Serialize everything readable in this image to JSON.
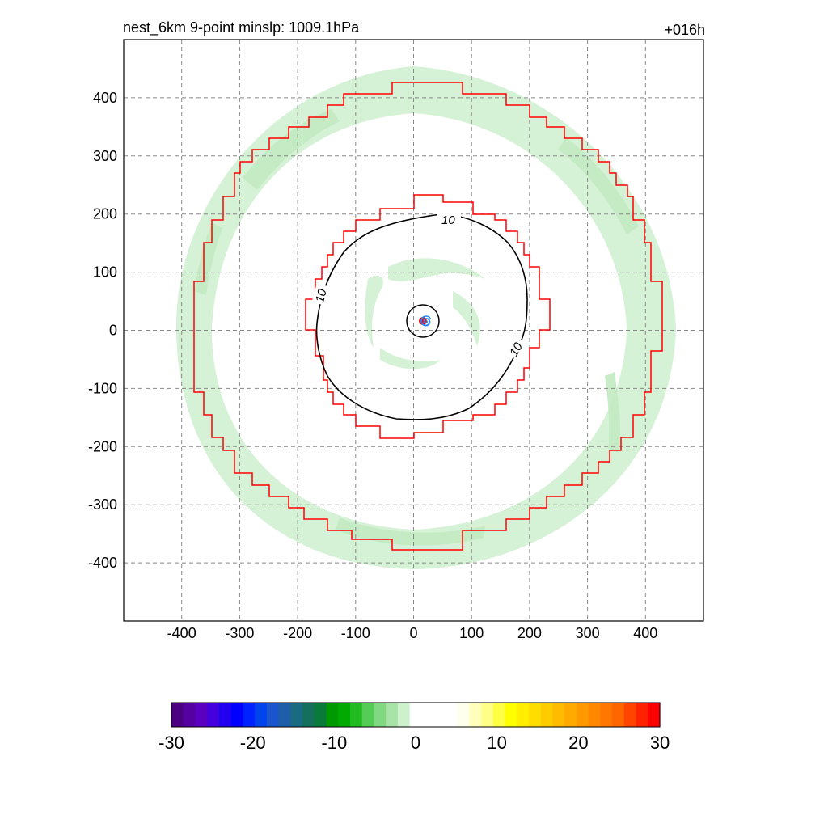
{
  "title_left": "nest_6km  9-point minslp: 1009.1hPa",
  "title_right": "+016h",
  "chart_data": {
    "type": "contour",
    "x_ticks": [
      -400,
      -300,
      -200,
      -100,
      0,
      100,
      200,
      300,
      400
    ],
    "y_ticks": [
      400,
      300,
      200,
      100,
      0,
      -100,
      -200,
      -300,
      -400
    ],
    "xlim": [
      -500,
      500
    ],
    "ylim": [
      -500,
      500
    ],
    "grid": true,
    "contour_labels": [
      "10",
      "10",
      "10"
    ],
    "colorbar": {
      "ticks": [
        -30,
        -20,
        -10,
        0,
        10,
        20,
        30
      ],
      "range": [
        -30,
        30
      ],
      "colors": [
        "#4b0082",
        "#5500a0",
        "#5a00c0",
        "#4400dd",
        "#2200f0",
        "#0000ff",
        "#0022ff",
        "#0044ee",
        "#1a55cc",
        "#1e5ea8",
        "#1a6a80",
        "#146f5c",
        "#0a7a3a",
        "#009900",
        "#00aa00",
        "#22bb22",
        "#55cc55",
        "#80d880",
        "#a8e4a8",
        "#cdf0cd",
        "#ffffff",
        "#ffffff",
        "#ffffff",
        "#ffffff",
        "#ffffee",
        "#ffffbb",
        "#ffff88",
        "#ffff44",
        "#ffff00",
        "#ffee00",
        "#ffdd00",
        "#ffcc00",
        "#ffbb00",
        "#ffaa00",
        "#ff9900",
        "#ff8800",
        "#ff7700",
        "#ff6600",
        "#ff4400",
        "#ff2200",
        "#ff0000"
      ]
    },
    "storm_center": [
      15,
      18
    ]
  }
}
